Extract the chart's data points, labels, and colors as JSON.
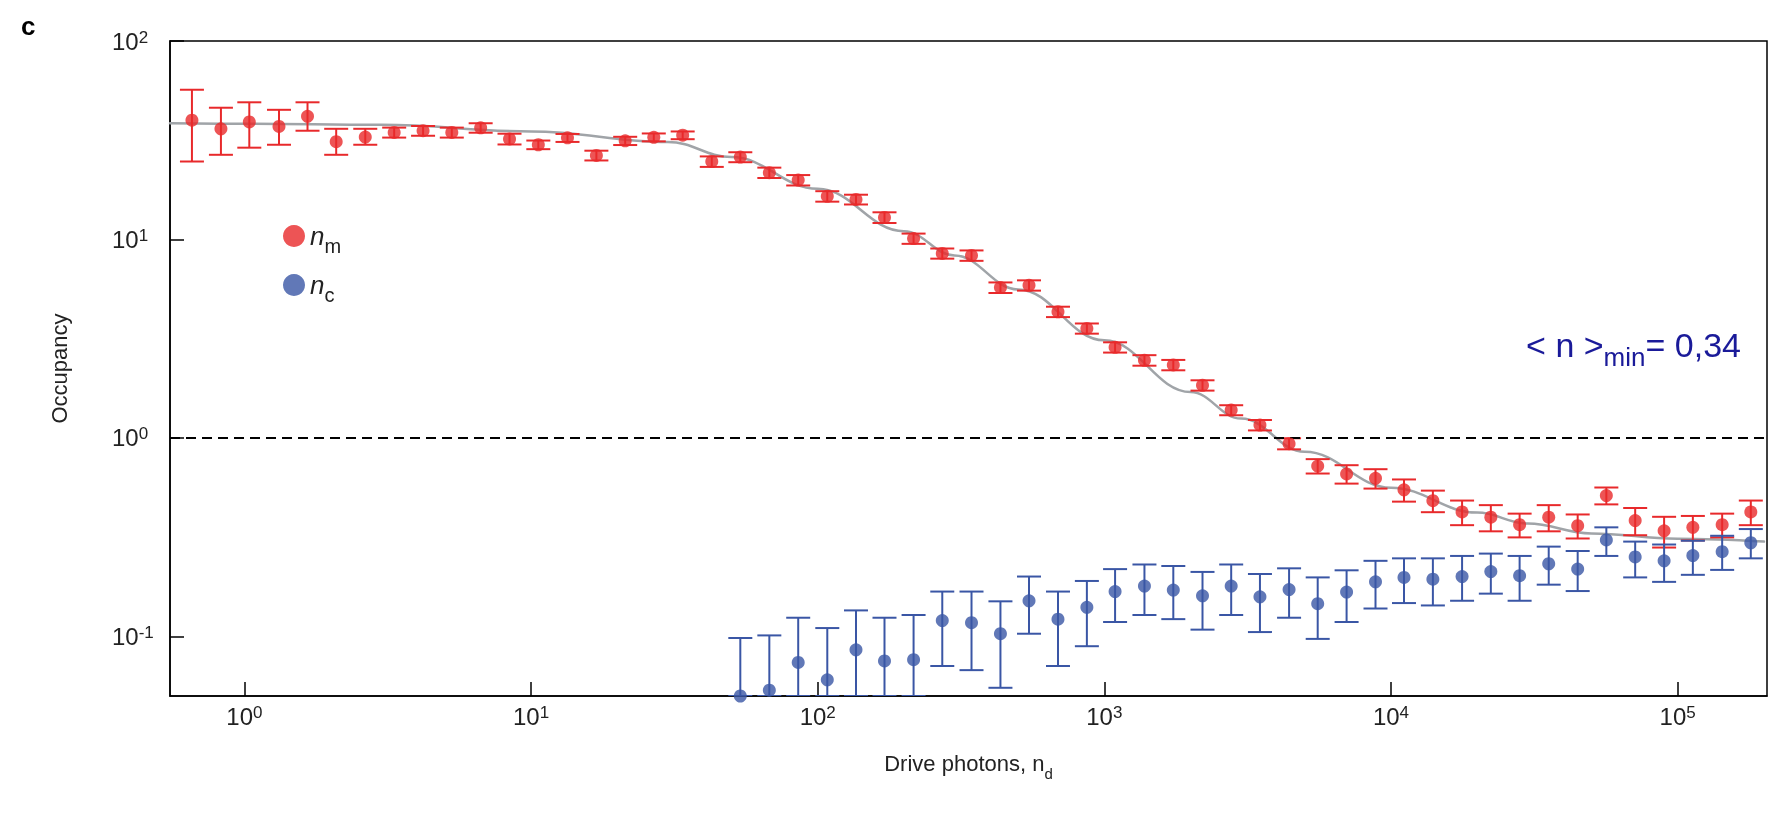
{
  "chart_data": {
    "type": "scatter",
    "title": "c",
    "xlabel": "Drive photons, n$_{d}$",
    "ylabel": "Occupancy",
    "log": "xy",
    "grid": false,
    "legend": "top left",
    "marker": "circle",
    "xlim": [
      0.55,
      205000
    ],
    "ylim": [
      0.05,
      100
    ],
    "xticks": [
      {
        "value": 1,
        "label": "10$^{0}$"
      },
      {
        "value": 10,
        "label": "10$^{1}$"
      },
      {
        "value": 100,
        "label": "10$^{2}$"
      },
      {
        "value": 1000,
        "label": "10$^{3}$"
      },
      {
        "value": 10000,
        "label": "10$^{4}$"
      },
      {
        "value": 100000,
        "label": "10$^{5}$"
      }
    ],
    "yticks": [
      {
        "value": 0.1,
        "label": "10$^{-1}$"
      },
      {
        "value": 1,
        "label": "10$^{0}$"
      },
      {
        "value": 10,
        "label": "10$^{1}$"
      },
      {
        "value": 100,
        "label": "10$^{2}$"
      }
    ],
    "x": [
      0.656,
      0.828,
      1.04,
      1.32,
      1.66,
      2.09,
      2.64,
      3.33,
      4.2,
      5.29,
      6.67,
      8.41,
      10.6,
      13.4,
      16.9,
      21.3,
      26.8,
      33.8,
      42.7,
      53.7,
      67.8,
      85.5,
      108,
      136,
      171,
      216,
      272,
      344,
      434,
      546,
      689,
      869,
      1090,
      1380,
      1740,
      2200,
      2770,
      3490,
      4410,
      5550,
      7000,
      8830,
      11100,
      14000,
      17700,
      22300,
      28100,
      35500,
      44800,
      56400,
      71100,
      89700,
      113000,
      143000,
      180000
    ],
    "series": [
      {
        "name": "n$_{m}$",
        "color": "#e8292b",
        "values": [
          39.9,
          36.1,
          39.1,
          37.1,
          41.7,
          31.1,
          32.8,
          34.6,
          35.3,
          34.6,
          36.5,
          32.1,
          30.0,
          32.5,
          26.5,
          31.4,
          32.7,
          33.5,
          24.7,
          26.0,
          21.7,
          19.9,
          16.5,
          15.9,
          12.9,
          10.1,
          8.5,
          8.3,
          5.72,
          5.87,
          4.32,
          3.56,
          2.86,
          2.46,
          2.33,
          1.84,
          1.38,
          1.16,
          0.935,
          0.721,
          0.658,
          0.625,
          0.547,
          0.482,
          0.423,
          0.398,
          0.365,
          0.398,
          0.361,
          0.512,
          0.383,
          0.34,
          0.354,
          0.365,
          0.423
        ],
        "errors": [
          [
            24.7,
            56.8
          ],
          [
            26.7,
            46.1
          ],
          [
            29.0,
            49.1
          ],
          [
            30.0,
            45.0
          ],
          [
            35.3,
            49.1
          ],
          [
            26.7,
            36.1
          ],
          [
            30.0,
            36.1
          ],
          2,
          2,
          2,
          2,
          2,
          1.5,
          1.5,
          1.5,
          1.5,
          1.5,
          1.5,
          1.5,
          1.5,
          1.3,
          1.2,
          1.0,
          0.9,
          0.8,
          0.6,
          0.5,
          0.5,
          0.35,
          0.35,
          0.26,
          0.21,
          0.17,
          0.15,
          0.14,
          0.11,
          0.08,
          0.07,
          0.06,
          0.06,
          0.07,
          0.07,
          0.07,
          0.06,
          0.06,
          0.06,
          0.05,
          0.06,
          0.05,
          0.05,
          0.06,
          0.06,
          0.05,
          0.05,
          0.06
        ]
      },
      {
        "name": "n$_{c}$",
        "color": "#3a56a5",
        "values": [
          null,
          null,
          null,
          null,
          null,
          null,
          null,
          null,
          null,
          null,
          null,
          null,
          null,
          null,
          null,
          null,
          null,
          null,
          null,
          0.05,
          0.0535,
          0.0738,
          0.0603,
          0.0855,
          0.0751,
          0.0762,
          0.12,
          0.117,
          0.103,
          0.151,
          0.122,
          0.14,
          0.168,
          0.179,
          0.171,
          0.16,
          0.179,
          0.158,
          0.172,
          0.146,
          0.167,
          0.188,
          0.198,
          0.194,
          0.2,
          0.212,
          0.202,
          0.232,
          0.218,
          0.306,
          0.251,
          0.24,
          0.255,
          0.267,
          0.296
        ],
        "errors": [
          null,
          null,
          null,
          null,
          null,
          null,
          null,
          null,
          null,
          null,
          null,
          null,
          null,
          null,
          null,
          null,
          null,
          null,
          null,
          [
            0.05,
            0.098
          ],
          [
            0.05,
            0.101
          ],
          [
            0.05,
            0.124
          ],
          [
            0.05,
            0.11
          ],
          [
            0.05,
            0.135
          ],
          [
            0.05,
            0.124
          ],
          [
            0.05,
            0.128
          ],
          [
            0.0708,
            0.168
          ],
          [
            0.0675,
            0.168
          ],
          [
            0.055,
            0.15
          ],
          [
            0.103,
            0.2
          ],
          [
            0.0708,
            0.168
          ],
          [
            0.0891,
            0.19
          ],
          [
            0.118,
            0.218
          ],
          [
            0.128,
            0.23
          ],
          [
            0.122,
            0.226
          ],
          [
            0.108,
            0.211
          ],
          [
            0.128,
            0.23
          ],
          [
            0.105,
            0.206
          ],
          [
            0.124,
            0.22
          ],
          [
            0.097,
            0.198
          ],
          [
            0.118,
            0.215
          ],
          [
            0.138,
            0.24
          ],
          [
            0.147,
            0.247
          ],
          [
            0.143,
            0.247
          ],
          [
            0.151,
            0.254
          ],
          [
            0.164,
            0.261
          ],
          [
            0.151,
            0.254
          ],
          [
            0.182,
            0.283
          ],
          [
            0.169,
            0.269
          ],
          [
            0.254,
            0.354
          ],
          [
            0.198,
            0.3
          ],
          [
            0.188,
            0.29
          ],
          [
            0.204,
            0.303
          ],
          [
            0.216,
            0.321
          ],
          [
            0.247,
            0.347
          ]
        ]
      },
      {
        "type": "line",
        "color": "#a0a4a8",
        "line_style": "solid",
        "marker": "none",
        "x": [
          0.55,
          1,
          3,
          10,
          30,
          50,
          100,
          200,
          300,
          500,
          1000,
          2000,
          3000,
          5000,
          10000,
          20000,
          30000,
          50000,
          100000,
          200000
        ],
        "values": [
          38.5,
          38.3,
          37.8,
          35,
          31,
          26,
          18,
          11,
          8.3,
          5.6,
          3.1,
          1.7,
          1.25,
          0.85,
          0.56,
          0.42,
          0.37,
          0.33,
          0.31,
          0.3
        ]
      }
    ],
    "ref_lines": [
      {
        "axis": "y",
        "value": 1,
        "color": "#000000",
        "line_style": "dashed"
      }
    ],
    "annotations": [
      "< n >$_{min}$= 0,34"
    ]
  }
}
